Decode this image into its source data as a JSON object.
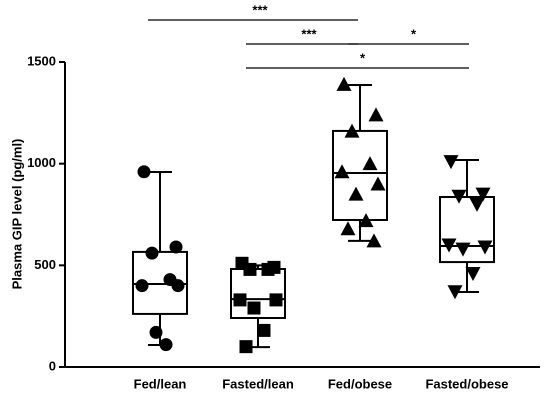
{
  "chart_data": {
    "type": "box",
    "ylabel": "Plasma GIP level (pg/ml)",
    "categories": [
      "Fed/lean",
      "Fasted/lean",
      "Fed/obese",
      "Fasted/obese"
    ],
    "markers": [
      "circle",
      "square",
      "triangle-up",
      "triangle-down"
    ],
    "color": "#000000",
    "boxes": [
      {
        "min": 108,
        "q1": 261,
        "median": 408,
        "q3": 566,
        "max": 959
      },
      {
        "min": 98,
        "q1": 241,
        "median": 334,
        "q3": 482,
        "max": 500
      },
      {
        "min": 620,
        "q1": 723,
        "median": 954,
        "q3": 1161,
        "max": 1387
      },
      {
        "min": 369,
        "q1": 516,
        "median": 595,
        "q3": 836,
        "max": 1018
      }
    ],
    "points": [
      [
        960,
        590,
        560,
        430,
        400,
        400,
        170,
        110
      ],
      [
        510,
        490,
        480,
        480,
        330,
        330,
        290,
        180,
        100
      ],
      [
        1390,
        1240,
        1160,
        1000,
        960,
        900,
        850,
        720,
        680,
        620
      ],
      [
        1010,
        850,
        840,
        800,
        600,
        590,
        580,
        460,
        370
      ]
    ],
    "comparisons": [
      {
        "groups": [
          "Fed/lean",
          "Fed/obese"
        ],
        "label": "***"
      },
      {
        "groups": [
          "Fasted/lean",
          "Fed/obese"
        ],
        "label": "***"
      },
      {
        "groups": [
          "Fed/obese",
          "Fasted/obese"
        ],
        "label": "*"
      },
      {
        "groups": [
          "Fasted/lean",
          "Fasted/obese"
        ],
        "label": "*"
      }
    ],
    "ylim": [
      0,
      1500
    ],
    "yticks": [
      0,
      500,
      1000,
      1500
    ]
  }
}
